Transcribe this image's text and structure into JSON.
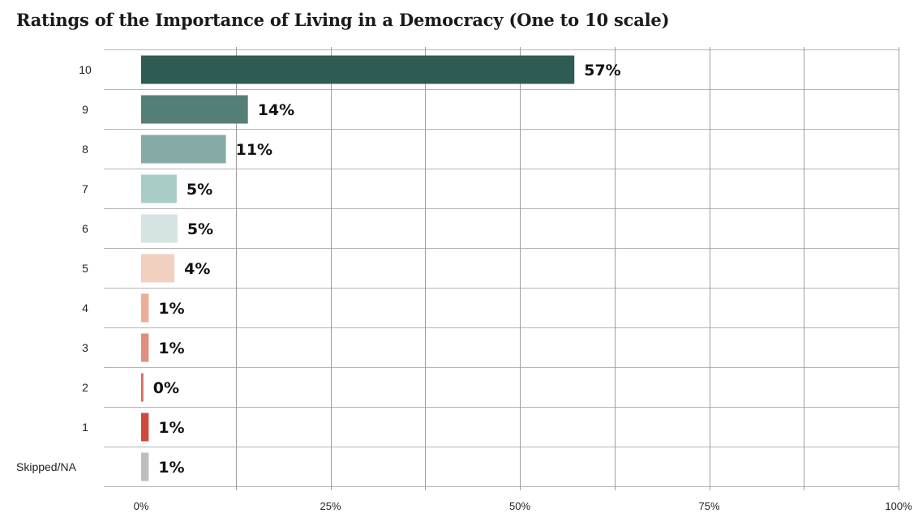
{
  "chart_data": {
    "type": "bar",
    "orientation": "horizontal",
    "title": "Ratings of the Importance of Living in a Democracy (One to 10 scale)",
    "categories": [
      "10",
      "9",
      "8",
      "7",
      "6",
      "5",
      "4",
      "3",
      "2",
      "1",
      "Skipped/NA"
    ],
    "values": [
      57,
      14,
      11,
      5,
      5,
      4,
      1,
      1,
      0,
      1,
      1
    ],
    "value_labels": [
      "57%",
      "14%",
      "11%",
      "5%",
      "5%",
      "4%",
      "1%",
      "1%",
      "0%",
      "1%",
      "1%"
    ],
    "bar_values": [
      57.2,
      14.1,
      11.2,
      4.7,
      4.8,
      4.4,
      1.0,
      1.0,
      0.3,
      1.0,
      1.0
    ],
    "colors": [
      "#2f5b55",
      "#567e78",
      "#86aba7",
      "#a8cdc7",
      "#d5e4e2",
      "#f2d0c0",
      "#eaad95",
      "#e08f7e",
      "#d96b5c",
      "#cc4a3b",
      "#bdbdbd"
    ],
    "xlim": [
      0,
      100
    ],
    "x_ticks": [
      0,
      25,
      50,
      75,
      100
    ],
    "x_tick_labels": [
      "0%",
      "25%",
      "50%",
      "75%",
      "100%"
    ],
    "xlabel": "",
    "ylabel": "",
    "grid": true
  }
}
